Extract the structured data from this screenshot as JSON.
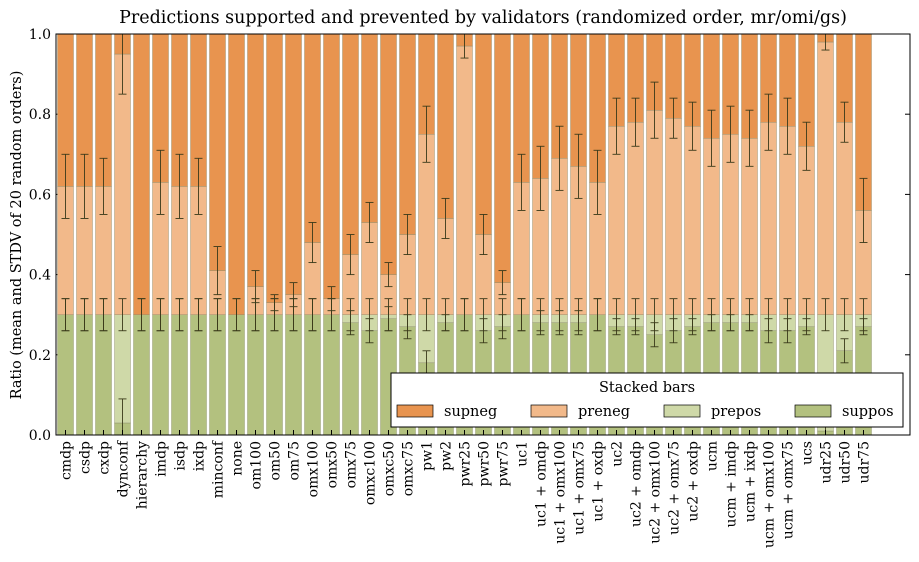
{
  "chart_data": {
    "type": "bar",
    "stacked": true,
    "title": "Predictions supported and prevented by validators (randomized order, mr/omi/gs)",
    "ylabel": "Ratio (mean and STDV of 20 random orders)",
    "xlabel": "",
    "ylim": [
      0.0,
      1.0
    ],
    "yticks": [
      "0.0",
      "0.2",
      "0.4",
      "0.6",
      "0.8",
      "1.0"
    ],
    "grid": false,
    "legend": {
      "title": "Stacked bars",
      "placement": "lower-right",
      "entries": [
        "supneg",
        "preneg",
        "prepos",
        "suppos"
      ]
    },
    "colors": {
      "supneg": "#e8944f",
      "preneg": "#f2b98a",
      "prepos": "#cfd9a8",
      "suppos": "#b3c17f",
      "errorbar": "#3a3a1a"
    },
    "categories": [
      "cmdp",
      "csdp",
      "cxdp",
      "dynconf",
      "hierarchy",
      "imdp",
      "isdp",
      "ixdp",
      "minconf",
      "none",
      "om100",
      "om50",
      "om75",
      "omx100",
      "omx50",
      "omx75",
      "omxc100",
      "omxc50",
      "omxc75",
      "pw1",
      "pw2",
      "pwr25",
      "pwr50",
      "pwr75",
      "uc1",
      "uc1 + omdp",
      "uc1 + omx100",
      "uc1 + omx75",
      "uc1 + oxdp",
      "uc2",
      "uc2 + omdp",
      "uc2 + omx100",
      "uc2 + omx75",
      "uc2 + oxdp",
      "ucm",
      "ucm + imdp",
      "ucm + ixdp",
      "ucm + omx100",
      "ucm + omx75",
      "ucs",
      "udr25",
      "udr50",
      "udr75"
    ],
    "series": [
      {
        "name": "suppos",
        "values": [
          0.3,
          0.3,
          0.3,
          0.03,
          0.3,
          0.3,
          0.3,
          0.3,
          0.3,
          0.3,
          0.3,
          0.3,
          0.3,
          0.3,
          0.3,
          0.28,
          0.26,
          0.29,
          0.27,
          0.18,
          0.28,
          0.3,
          0.26,
          0.27,
          0.3,
          0.28,
          0.28,
          0.28,
          0.3,
          0.27,
          0.27,
          0.25,
          0.26,
          0.27,
          0.28,
          0.28,
          0.28,
          0.26,
          0.26,
          0.27,
          0.01,
          0.21,
          0.27
        ],
        "errors": [
          0.04,
          0.04,
          0.04,
          0.06,
          0.04,
          0.04,
          0.04,
          0.04,
          0.04,
          0.04,
          0.04,
          0.04,
          0.04,
          0.04,
          0.04,
          0.03,
          0.03,
          0.03,
          0.03,
          0.03,
          0.02,
          0.04,
          0.03,
          0.03,
          0.04,
          0.03,
          0.03,
          0.03,
          0.04,
          0.02,
          0.02,
          0.03,
          0.03,
          0.02,
          0.02,
          0.02,
          0.02,
          0.03,
          0.03,
          0.02,
          0.01,
          0.03,
          0.02
        ]
      },
      {
        "name": "prepos",
        "values": [
          0.0,
          0.0,
          0.0,
          0.27,
          0.0,
          0.0,
          0.0,
          0.0,
          0.0,
          0.0,
          0.0,
          0.0,
          0.0,
          0.0,
          0.0,
          0.02,
          0.04,
          0.01,
          0.03,
          0.12,
          0.02,
          0.0,
          0.04,
          0.03,
          0.0,
          0.02,
          0.02,
          0.02,
          0.0,
          0.03,
          0.03,
          0.05,
          0.04,
          0.03,
          0.02,
          0.02,
          0.02,
          0.04,
          0.04,
          0.03,
          0.29,
          0.09,
          0.03
        ],
        "errors": [
          0.04,
          0.04,
          0.04,
          0.04,
          0.04,
          0.04,
          0.04,
          0.04,
          0.04,
          0.04,
          0.04,
          0.04,
          0.04,
          0.04,
          0.04,
          0.04,
          0.04,
          0.04,
          0.04,
          0.04,
          0.04,
          0.04,
          0.04,
          0.04,
          0.04,
          0.04,
          0.04,
          0.04,
          0.04,
          0.04,
          0.04,
          0.04,
          0.04,
          0.04,
          0.04,
          0.04,
          0.04,
          0.04,
          0.04,
          0.04,
          0.04,
          0.04,
          0.04
        ]
      },
      {
        "name": "preneg",
        "values": [
          0.32,
          0.32,
          0.32,
          0.65,
          0.0,
          0.33,
          0.32,
          0.32,
          0.11,
          0.0,
          0.07,
          0.03,
          0.05,
          0.18,
          0.04,
          0.15,
          0.23,
          0.1,
          0.2,
          0.45,
          0.24,
          0.67,
          0.2,
          0.08,
          0.33,
          0.34,
          0.39,
          0.37,
          0.33,
          0.47,
          0.48,
          0.51,
          0.49,
          0.47,
          0.44,
          0.45,
          0.44,
          0.48,
          0.47,
          0.42,
          0.68,
          0.48,
          0.26
        ],
        "errors": [
          0.08,
          0.08,
          0.07,
          0.1,
          0.0,
          0.08,
          0.08,
          0.07,
          0.06,
          0.0,
          0.04,
          0.02,
          0.03,
          0.05,
          0.03,
          0.05,
          0.05,
          0.03,
          0.05,
          0.07,
          0.05,
          0.03,
          0.05,
          0.03,
          0.07,
          0.08,
          0.08,
          0.08,
          0.08,
          0.07,
          0.06,
          0.07,
          0.05,
          0.06,
          0.07,
          0.07,
          0.07,
          0.07,
          0.07,
          0.06,
          0.02,
          0.05,
          0.08
        ]
      },
      {
        "name": "supneg",
        "values": [
          0.38,
          0.38,
          0.38,
          0.05,
          0.7,
          0.37,
          0.38,
          0.38,
          0.59,
          0.7,
          0.63,
          0.67,
          0.65,
          0.52,
          0.66,
          0.55,
          0.47,
          0.6,
          0.5,
          0.25,
          0.46,
          0.03,
          0.5,
          0.62,
          0.37,
          0.36,
          0.31,
          0.33,
          0.37,
          0.23,
          0.22,
          0.19,
          0.21,
          0.23,
          0.26,
          0.25,
          0.26,
          0.22,
          0.23,
          0.28,
          0.02,
          0.22,
          0.44
        ],
        "errors": [
          0.0,
          0.0,
          0.0,
          0.0,
          0.0,
          0.0,
          0.0,
          0.0,
          0.0,
          0.0,
          0.0,
          0.0,
          0.0,
          0.0,
          0.0,
          0.0,
          0.0,
          0.0,
          0.0,
          0.0,
          0.0,
          0.0,
          0.0,
          0.0,
          0.0,
          0.0,
          0.0,
          0.0,
          0.0,
          0.0,
          0.0,
          0.0,
          0.0,
          0.0,
          0.0,
          0.0,
          0.0,
          0.0,
          0.0,
          0.0,
          0.0,
          0.0,
          0.0
        ]
      }
    ]
  }
}
